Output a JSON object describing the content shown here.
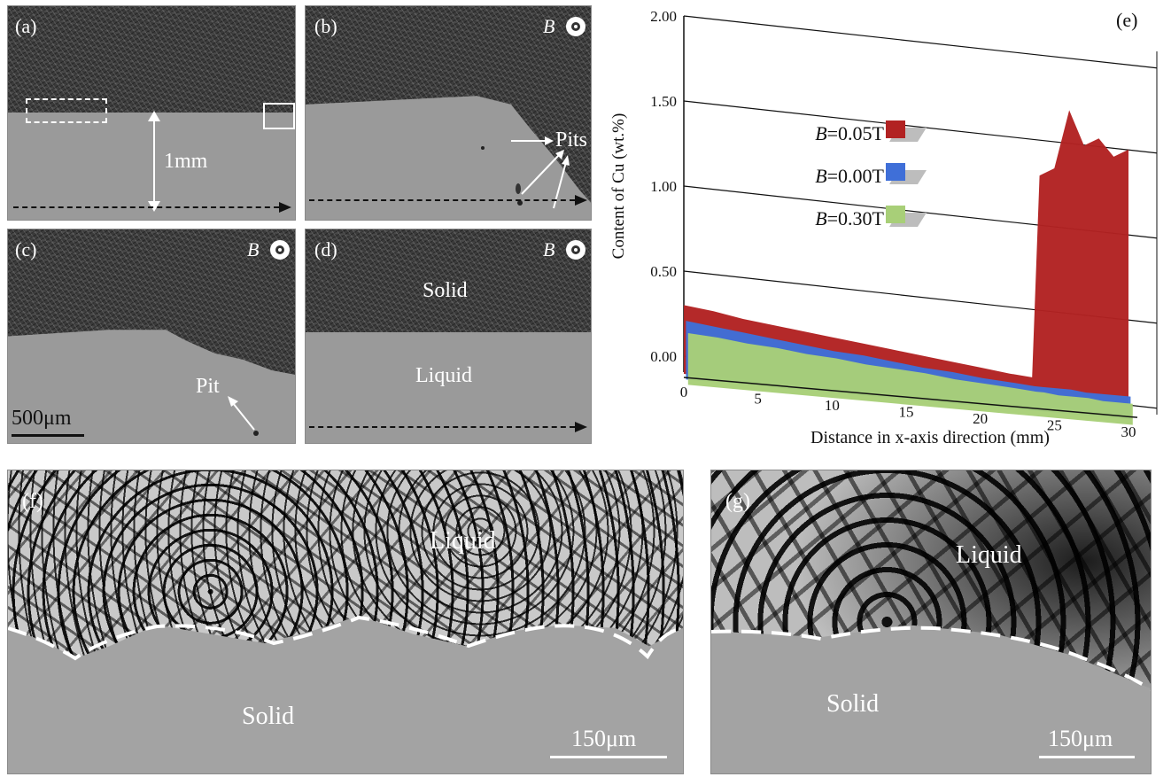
{
  "panels": {
    "a": {
      "label": "(a)",
      "dimension": "1mm"
    },
    "b": {
      "label": "(b)",
      "field": "B",
      "annotation": "Pits"
    },
    "c": {
      "label": "(c)",
      "field": "B",
      "annotation": "Pit",
      "scale": "500μm"
    },
    "d": {
      "label": "(d)",
      "field": "B",
      "solid": "Solid",
      "liquid": "Liquid"
    },
    "f": {
      "label": "(f)",
      "liquid": "Liquid",
      "solid": "Solid",
      "scale": "150μm"
    },
    "g": {
      "label": "(g)",
      "liquid": "Liquid",
      "solid": "Solid",
      "scale": "150μm"
    }
  },
  "colors": {
    "red": "#b22222",
    "blue": "#3f6fd8",
    "green": "#a8cf78"
  },
  "chart_data": {
    "type": "area",
    "panel_label": "(e)",
    "title": "",
    "xlabel": "Distance in x-axis direction (mm)",
    "ylabel": "Content of Cu (wt.%)",
    "xlim": [
      0,
      30
    ],
    "ylim": [
      0,
      2.0
    ],
    "x_ticks": [
      "0",
      "5",
      "10",
      "15",
      "20",
      "25",
      "30"
    ],
    "y_ticks": [
      "0.00",
      "0.50",
      "1.00",
      "1.50",
      "2.00"
    ],
    "grid": true,
    "legend_position": "left-middle",
    "x": [
      0,
      2,
      4,
      6,
      8,
      10,
      12,
      14,
      16,
      18,
      20,
      22,
      23.5,
      24,
      25,
      26,
      27,
      28,
      29,
      30
    ],
    "series": [
      {
        "name": "B=0.05T",
        "color": "#b22222",
        "values": [
          0.3,
          0.28,
          0.25,
          0.23,
          0.21,
          0.19,
          0.17,
          0.15,
          0.13,
          0.11,
          0.09,
          0.07,
          0.06,
          1.25,
          1.3,
          1.65,
          1.45,
          1.5,
          1.4,
          1.45
        ]
      },
      {
        "name": "B=0.00T",
        "color": "#3f6fd8",
        "values": [
          0.24,
          0.22,
          0.2,
          0.18,
          0.16,
          0.14,
          0.13,
          0.11,
          0.09,
          0.08,
          0.06,
          0.05,
          0.04,
          0.04,
          0.04,
          0.04,
          0.03,
          0.03,
          0.03,
          0.03
        ]
      },
      {
        "name": "B=0.30T",
        "color": "#a8cf78",
        "values": [
          0.2,
          0.19,
          0.17,
          0.16,
          0.14,
          0.13,
          0.11,
          0.1,
          0.09,
          0.07,
          0.06,
          0.05,
          0.04,
          0.04,
          0.03,
          0.03,
          0.03,
          0.02,
          0.02,
          0.02
        ]
      }
    ]
  }
}
